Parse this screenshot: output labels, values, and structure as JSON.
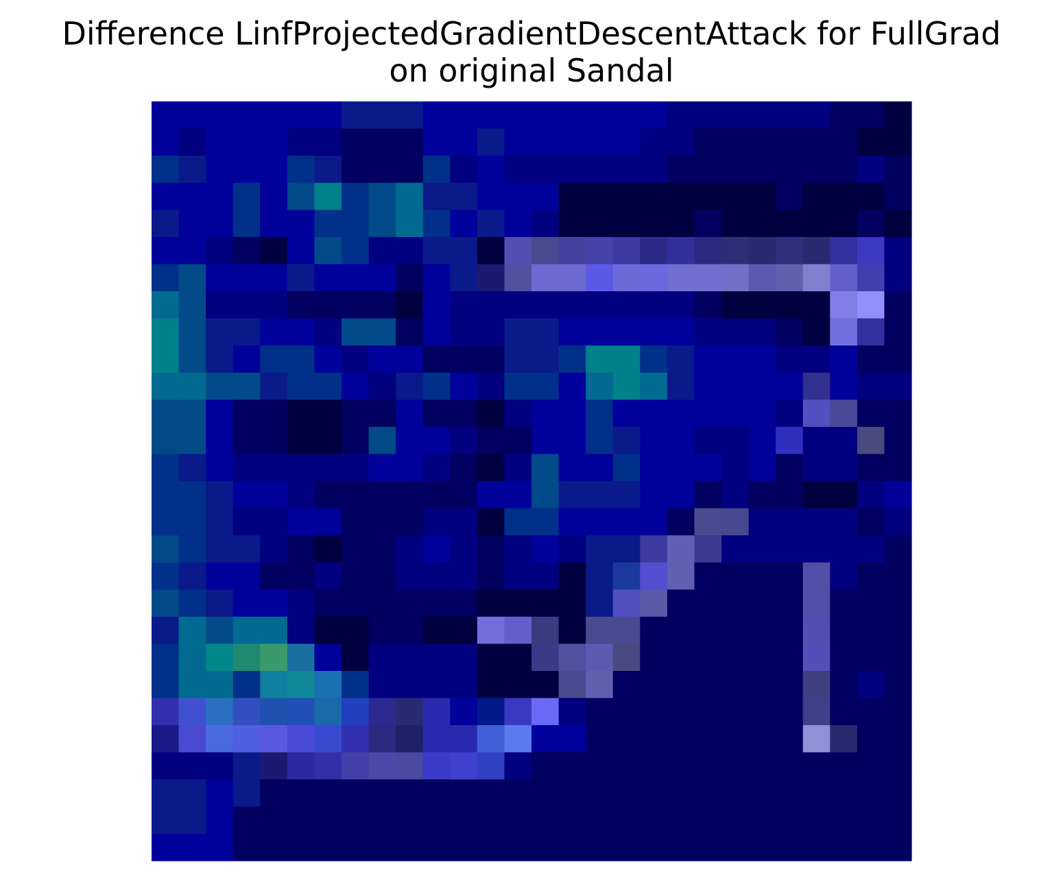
{
  "chart_data": {
    "type": "heatmap",
    "title": [
      "Difference LinfProjectedGradientDescentAttack for FullGrad",
      "on original Sandal"
    ],
    "axes": "off",
    "grid": false,
    "legend": "none",
    "rows": 28,
    "cols": 28,
    "palette": [
      "#000027",
      "#000040",
      "#000060",
      "#000080",
      "#00009a",
      "#0a1a8a",
      "#00308a",
      "#004a8a",
      "#006a90",
      "#00808a",
      "#1a1a70",
      "#2a2a80",
      "#3a3aa0",
      "#4a4aa6",
      "#6060c8",
      "#7a7ae0",
      "#9090ff",
      "#3a9a6a",
      "#008888",
      "#4060e0",
      "#2070b0"
    ],
    "cells": [
      "4444444555444444444333333221",
      "4344433222445444443322222211",
      "6544465222634333333222222232",
      "4446479678554441111111121112",
      "5446446678645431111121111121",
      "4432147633551444444443331113",
      "6744454442454444444344444443",
      "8733322221433333333321111142",
      "9755443772433554444433321142",
      "9754664344222556996544433422",
      "8877566435643664898544444433",
      "7742211224221344644444433322",
      "7742211274432244654433433332",
      "6543333344321374464443423322",
      "6654432222224475554423221134",
      "6653344222331664444233333323",
      "7655321223432343554433333332",
      "6544223223332331553322222322",
      "7654432222221111532222222222",
      "5878831122111111332222222222",
      "6899984133331111122222222222",
      "6886888633331112222222222232",
      "5455584333343333222222222222",
      "5555534334443344222222222222",
      "3335555334333322222222222222",
      "5545222222222222222222222222",
      "5542222222222222222222222222",
      "4442222222222222222222222222"
    ],
    "overrides": [
      {
        "r": 5,
        "c": 13,
        "color": "#5050b0"
      },
      {
        "r": 5,
        "c": 14,
        "color": "#4a4a90"
      },
      {
        "r": 5,
        "c": 15,
        "color": "#4444a0"
      },
      {
        "r": 5,
        "c": 16,
        "color": "#4444a8"
      },
      {
        "r": 5,
        "c": 17,
        "color": "#3a3aa0"
      },
      {
        "r": 5,
        "c": 18,
        "color": "#2a2a88"
      },
      {
        "r": 5,
        "c": 19,
        "color": "#30309a"
      },
      {
        "r": 5,
        "c": 20,
        "color": "#2a2a80"
      },
      {
        "r": 5,
        "c": 21,
        "color": "#2e2e78"
      },
      {
        "r": 5,
        "c": 22,
        "color": "#2a2a70"
      },
      {
        "r": 5,
        "c": 23,
        "color": "#303080"
      },
      {
        "r": 5,
        "c": 24,
        "color": "#2a2a70"
      },
      {
        "r": 5,
        "c": 25,
        "color": "#3030a0"
      },
      {
        "r": 5,
        "c": 26,
        "color": "#3a3ac0"
      },
      {
        "r": 6,
        "c": 12,
        "color": "#1a1a70"
      },
      {
        "r": 6,
        "c": 13,
        "color": "#5050a0"
      },
      {
        "r": 6,
        "c": 14,
        "color": "#6a6ad0"
      },
      {
        "r": 6,
        "c": 15,
        "color": "#6a6ad0"
      },
      {
        "r": 6,
        "c": 16,
        "color": "#5a5ae8"
      },
      {
        "r": 6,
        "c": 17,
        "color": "#6a6ad8"
      },
      {
        "r": 6,
        "c": 18,
        "color": "#6a6ae0"
      },
      {
        "r": 6,
        "c": 19,
        "color": "#7070d0"
      },
      {
        "r": 6,
        "c": 20,
        "color": "#7070d0"
      },
      {
        "r": 6,
        "c": 21,
        "color": "#7070c8"
      },
      {
        "r": 6,
        "c": 22,
        "color": "#5a5ab0"
      },
      {
        "r": 6,
        "c": 23,
        "color": "#6060b0"
      },
      {
        "r": 6,
        "c": 24,
        "color": "#8080d0"
      },
      {
        "r": 6,
        "c": 25,
        "color": "#6060c8"
      },
      {
        "r": 6,
        "c": 26,
        "color": "#4040b0"
      },
      {
        "r": 7,
        "c": 25,
        "color": "#8080e8"
      },
      {
        "r": 7,
        "c": 26,
        "color": "#9090ff"
      },
      {
        "r": 8,
        "c": 25,
        "color": "#7070e0"
      },
      {
        "r": 8,
        "c": 26,
        "color": "#3030a0"
      },
      {
        "r": 10,
        "c": 24,
        "color": "#303090"
      },
      {
        "r": 11,
        "c": 24,
        "color": "#5050c0"
      },
      {
        "r": 11,
        "c": 25,
        "color": "#4a4a98"
      },
      {
        "r": 12,
        "c": 23,
        "color": "#3030c0"
      },
      {
        "r": 12,
        "c": 26,
        "color": "#4a4a80"
      },
      {
        "r": 15,
        "c": 20,
        "color": "#4a4a90"
      },
      {
        "r": 15,
        "c": 21,
        "color": "#484890"
      },
      {
        "r": 16,
        "c": 18,
        "color": "#3a3aa0"
      },
      {
        "r": 16,
        "c": 19,
        "color": "#6060b8"
      },
      {
        "r": 16,
        "c": 20,
        "color": "#3a3a90"
      },
      {
        "r": 17,
        "c": 17,
        "color": "#1a3aa0"
      },
      {
        "r": 17,
        "c": 18,
        "color": "#5050d0"
      },
      {
        "r": 17,
        "c": 19,
        "color": "#6060b0"
      },
      {
        "r": 17,
        "c": 24,
        "color": "#5050a8"
      },
      {
        "r": 18,
        "c": 17,
        "color": "#5050c0"
      },
      {
        "r": 18,
        "c": 18,
        "color": "#5a5aa8"
      },
      {
        "r": 18,
        "c": 24,
        "color": "#5050a8"
      },
      {
        "r": 19,
        "c": 12,
        "color": "#7070d8"
      },
      {
        "r": 19,
        "c": 13,
        "color": "#6060c8"
      },
      {
        "r": 19,
        "c": 14,
        "color": "#3a3a80"
      },
      {
        "r": 19,
        "c": 16,
        "color": "#4a4a90"
      },
      {
        "r": 19,
        "c": 17,
        "color": "#4a4a90"
      },
      {
        "r": 19,
        "c": 24,
        "color": "#5050b0"
      },
      {
        "r": 20,
        "c": 2,
        "color": "#008888"
      },
      {
        "r": 20,
        "c": 3,
        "color": "#208a70"
      },
      {
        "r": 20,
        "c": 4,
        "color": "#3a9a6a"
      },
      {
        "r": 20,
        "c": 5,
        "color": "#1a70a0"
      },
      {
        "r": 20,
        "c": 14,
        "color": "#3a3a88"
      },
      {
        "r": 20,
        "c": 15,
        "color": "#5050a0"
      },
      {
        "r": 20,
        "c": 16,
        "color": "#5a5ab0"
      },
      {
        "r": 20,
        "c": 17,
        "color": "#4a4a80"
      },
      {
        "r": 20,
        "c": 24,
        "color": "#5050b8"
      },
      {
        "r": 21,
        "c": 4,
        "color": "#1080a0"
      },
      {
        "r": 21,
        "c": 5,
        "color": "#108898"
      },
      {
        "r": 21,
        "c": 6,
        "color": "#1a70b0"
      },
      {
        "r": 21,
        "c": 15,
        "color": "#4a4a90"
      },
      {
        "r": 21,
        "c": 16,
        "color": "#6060b0"
      },
      {
        "r": 21,
        "c": 24,
        "color": "#404080"
      },
      {
        "r": 22,
        "c": 0,
        "color": "#3030b0"
      },
      {
        "r": 22,
        "c": 1,
        "color": "#4050d0"
      },
      {
        "r": 22,
        "c": 2,
        "color": "#2a70c0"
      },
      {
        "r": 22,
        "c": 3,
        "color": "#3050c0"
      },
      {
        "r": 22,
        "c": 4,
        "color": "#2050b0"
      },
      {
        "r": 22,
        "c": 5,
        "color": "#2050b8"
      },
      {
        "r": 22,
        "c": 6,
        "color": "#1a6aaa"
      },
      {
        "r": 22,
        "c": 7,
        "color": "#2040c0"
      },
      {
        "r": 22,
        "c": 8,
        "color": "#2a2a90"
      },
      {
        "r": 22,
        "c": 9,
        "color": "#2a2a70"
      },
      {
        "r": 22,
        "c": 10,
        "color": "#2a2ab0"
      },
      {
        "r": 22,
        "c": 12,
        "color": "#001a8a"
      },
      {
        "r": 22,
        "c": 13,
        "color": "#3a3ac0"
      },
      {
        "r": 22,
        "c": 14,
        "color": "#6a6af8"
      },
      {
        "r": 22,
        "c": 24,
        "color": "#40408a"
      },
      {
        "r": 23,
        "c": 0,
        "color": "#1a1a8a"
      },
      {
        "r": 23,
        "c": 1,
        "color": "#4a4ad0"
      },
      {
        "r": 23,
        "c": 2,
        "color": "#4a6ae0"
      },
      {
        "r": 23,
        "c": 3,
        "color": "#5060e0"
      },
      {
        "r": 23,
        "c": 4,
        "color": "#5a5ae0"
      },
      {
        "r": 23,
        "c": 5,
        "color": "#4a4ad8"
      },
      {
        "r": 23,
        "c": 6,
        "color": "#3a4ad0"
      },
      {
        "r": 23,
        "c": 7,
        "color": "#3030b0"
      },
      {
        "r": 23,
        "c": 8,
        "color": "#2a2a80"
      },
      {
        "r": 23,
        "c": 9,
        "color": "#202068"
      },
      {
        "r": 23,
        "c": 10,
        "color": "#2a2ab0"
      },
      {
        "r": 23,
        "c": 11,
        "color": "#2a2ab0"
      },
      {
        "r": 23,
        "c": 12,
        "color": "#4060d8"
      },
      {
        "r": 23,
        "c": 13,
        "color": "#5a7af0"
      },
      {
        "r": 23,
        "c": 24,
        "color": "#9090d8"
      },
      {
        "r": 23,
        "c": 25,
        "color": "#2a2a70"
      },
      {
        "r": 24,
        "c": 4,
        "color": "#1a1a70"
      },
      {
        "r": 24,
        "c": 5,
        "color": "#2a2aa0"
      },
      {
        "r": 24,
        "c": 6,
        "color": "#3030a8"
      },
      {
        "r": 24,
        "c": 7,
        "color": "#4040a8"
      },
      {
        "r": 24,
        "c": 8,
        "color": "#4a4aa8"
      },
      {
        "r": 24,
        "c": 9,
        "color": "#4a4aa0"
      },
      {
        "r": 24,
        "c": 10,
        "color": "#3a3ac8"
      },
      {
        "r": 24,
        "c": 11,
        "color": "#4040d0"
      },
      {
        "r": 24,
        "c": 12,
        "color": "#3040c0"
      }
    ]
  }
}
